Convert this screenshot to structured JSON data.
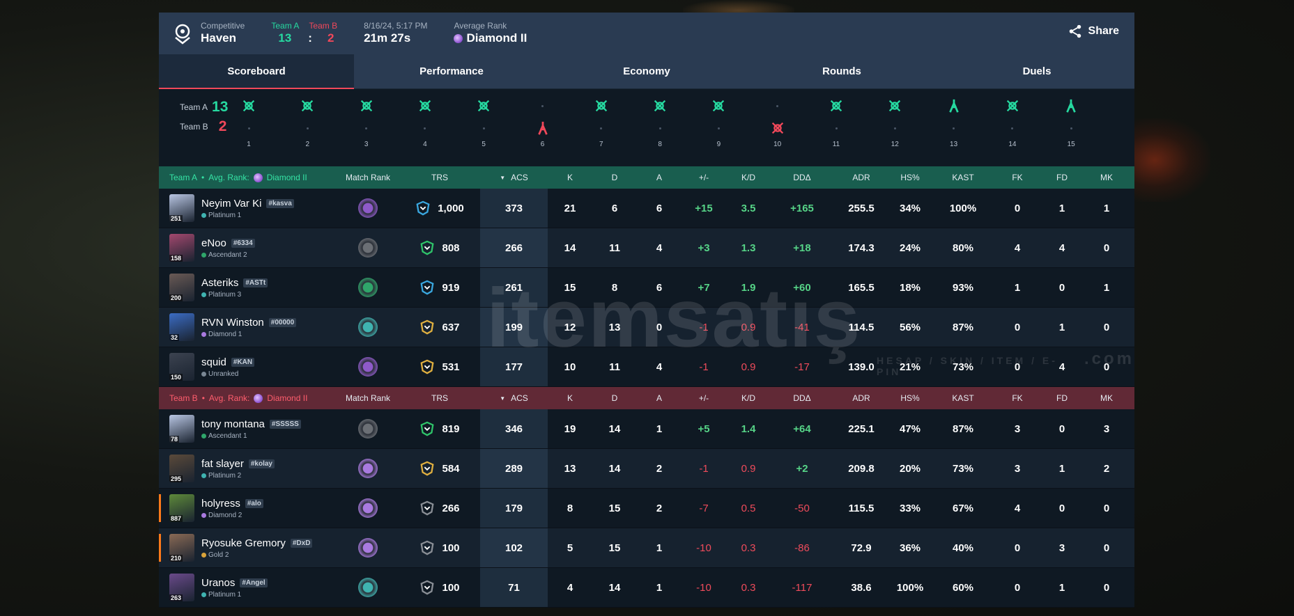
{
  "header": {
    "mode": "Competitive",
    "map": "Haven",
    "team_a_label": "Team A",
    "team_b_label": "Team B",
    "team_a_score": "13",
    "team_b_score": "2",
    "colon": ":",
    "datetime": "8/16/24, 5:17 PM",
    "duration": "21m 27s",
    "avg_rank_label": "Average Rank",
    "avg_rank": "Diamond II",
    "share_label": "Share"
  },
  "tabs": [
    {
      "label": "Scoreboard",
      "active": true
    },
    {
      "label": "Performance",
      "active": false
    },
    {
      "label": "Economy",
      "active": false
    },
    {
      "label": "Rounds",
      "active": false
    },
    {
      "label": "Duels",
      "active": false
    }
  ],
  "timeline": {
    "team_a_label": "Team A",
    "team_a_score": "13",
    "team_b_label": "Team B",
    "team_b_score": "2",
    "rounds": [
      {
        "num": "1",
        "winner": "A",
        "icon": "elimination"
      },
      {
        "num": "2",
        "winner": "A",
        "icon": "elimination"
      },
      {
        "num": "3",
        "winner": "A",
        "icon": "elimination"
      },
      {
        "num": "4",
        "winner": "A",
        "icon": "elimination"
      },
      {
        "num": "5",
        "winner": "A",
        "icon": "elimination"
      },
      {
        "num": "6",
        "winner": "B",
        "icon": "defuse"
      },
      {
        "num": "7",
        "winner": "A",
        "icon": "elimination"
      },
      {
        "num": "8",
        "winner": "A",
        "icon": "elimination"
      },
      {
        "num": "9",
        "winner": "A",
        "icon": "elimination"
      },
      {
        "num": "10",
        "winner": "B",
        "icon": "elimination"
      },
      {
        "num": "11",
        "winner": "A",
        "icon": "elimination"
      },
      {
        "num": "12",
        "winner": "A",
        "icon": "elimination"
      },
      {
        "num": "13",
        "winner": "A",
        "icon": "defuse"
      },
      {
        "num": "14",
        "winner": "A",
        "icon": "elimination"
      },
      {
        "num": "15",
        "winner": "A",
        "icon": "defuse"
      }
    ]
  },
  "columns": {
    "match_rank": "Match Rank",
    "trs": "TRS",
    "acs": "ACS",
    "k": "K",
    "d": "D",
    "a": "A",
    "pm": "+/-",
    "kd": "K/D",
    "dd": "DDΔ",
    "adr": "ADR",
    "hs": "HS%",
    "kast": "KAST",
    "fk": "FK",
    "fd": "FD",
    "mk": "MK"
  },
  "team_a": {
    "name": "Team A",
    "sep": "•",
    "avg_rank_label": "Avg. Rank:",
    "avg_rank": "Diamond II",
    "players": [
      {
        "name": "Neyim Var Ki",
        "tag": "#kasva",
        "level": "251",
        "rank": "Platinum 1",
        "rank_color": "#3fb3b0",
        "match_rank_color": "#8e5ac9",
        "trs_color": "#3aa8e0",
        "trs": "1,000",
        "acs": "373",
        "k": "21",
        "d": "6",
        "a": "6",
        "pm": "+15",
        "kd": "3.5",
        "dd": "+165",
        "adr": "255.5",
        "hs": "34%",
        "kast": "100%",
        "fk": "0",
        "fd": "1",
        "mk": "1",
        "positive": true,
        "avatar_color": "#b9c6e3",
        "orange": false
      },
      {
        "name": "eNoo",
        "tag": "#6334",
        "level": "158",
        "rank": "Ascendant 2",
        "rank_color": "#2fa56a",
        "match_rank_color": "#6b6f75",
        "trs_color": "#2fc46a",
        "trs": "808",
        "acs": "266",
        "k": "14",
        "d": "11",
        "a": "4",
        "pm": "+3",
        "kd": "1.3",
        "dd": "+18",
        "adr": "174.3",
        "hs": "24%",
        "kast": "80%",
        "fk": "4",
        "fd": "4",
        "mk": "0",
        "positive": true,
        "avatar_color": "#a3486e",
        "orange": false
      },
      {
        "name": "Asteriks",
        "tag": "#ASTt",
        "level": "200",
        "rank": "Platinum 3",
        "rank_color": "#3fb3b0",
        "match_rank_color": "#2fa56a",
        "trs_color": "#3aa8e0",
        "trs": "919",
        "acs": "261",
        "k": "15",
        "d": "8",
        "a": "6",
        "pm": "+7",
        "kd": "1.9",
        "dd": "+60",
        "adr": "165.5",
        "hs": "18%",
        "kast": "93%",
        "fk": "1",
        "fd": "0",
        "mk": "1",
        "positive": true,
        "avatar_color": "#6a5a55",
        "orange": false
      },
      {
        "name": "RVN Winston",
        "tag": "#00000",
        "level": "32",
        "rank": "Diamond 1",
        "rank_color": "#a97ae0",
        "match_rank_color": "#3fb3b0",
        "trs_color": "#e0b040",
        "trs": "637",
        "acs": "199",
        "k": "12",
        "d": "13",
        "a": "0",
        "pm": "-1",
        "kd": "0.9",
        "dd": "-41",
        "adr": "114.5",
        "hs": "56%",
        "kast": "87%",
        "fk": "0",
        "fd": "1",
        "mk": "0",
        "positive": false,
        "avatar_color": "#3b6cc4",
        "orange": false
      },
      {
        "name": "squid",
        "tag": "#KAN",
        "level": "150",
        "rank": "Unranked",
        "rank_color": "#7a8794",
        "match_rank_color": "#8e5ac9",
        "trs_color": "#e0b040",
        "trs": "531",
        "acs": "177",
        "k": "10",
        "d": "11",
        "a": "4",
        "pm": "-1",
        "kd": "0.9",
        "dd": "-17",
        "adr": "139.0",
        "hs": "21%",
        "kast": "73%",
        "fk": "0",
        "fd": "4",
        "mk": "0",
        "positive": false,
        "avatar_color": "#3c4350",
        "orange": false
      }
    ]
  },
  "team_b": {
    "name": "Team B",
    "sep": "•",
    "avg_rank_label": "Avg. Rank:",
    "avg_rank": "Diamond II",
    "players": [
      {
        "name": "tony montana",
        "tag": "#SSSSS",
        "level": "78",
        "rank": "Ascendant 1",
        "rank_color": "#2fa56a",
        "match_rank_color": "#6b6f75",
        "trs_color": "#2fc46a",
        "trs": "819",
        "acs": "346",
        "k": "19",
        "d": "14",
        "a": "1",
        "pm": "+5",
        "kd": "1.4",
        "dd": "+64",
        "adr": "225.1",
        "hs": "47%",
        "kast": "87%",
        "fk": "3",
        "fd": "0",
        "mk": "3",
        "positive": true,
        "avatar_color": "#b9c6e3",
        "orange": false
      },
      {
        "name": "fat slayer",
        "tag": "#kolay",
        "level": "295",
        "rank": "Platinum 2",
        "rank_color": "#3fb3b0",
        "match_rank_color": "#a97ae0",
        "trs_color": "#e0b040",
        "trs": "584",
        "acs": "289",
        "k": "13",
        "d": "14",
        "a": "2",
        "pm": "-1",
        "kd": "0.9",
        "dd": "+2",
        "adr": "209.8",
        "hs": "20%",
        "kast": "73%",
        "fk": "3",
        "fd": "1",
        "mk": "2",
        "positive": false,
        "dd_positive": true,
        "avatar_color": "#5b4a3a",
        "orange": false
      },
      {
        "name": "holyress",
        "tag": "#alo",
        "level": "887",
        "rank": "Diamond 2",
        "rank_color": "#a97ae0",
        "match_rank_color": "#a97ae0",
        "trs_color": "#8a8f96",
        "trs": "266",
        "acs": "179",
        "k": "8",
        "d": "15",
        "a": "2",
        "pm": "-7",
        "kd": "0.5",
        "dd": "-50",
        "adr": "115.5",
        "hs": "33%",
        "kast": "67%",
        "fk": "4",
        "fd": "0",
        "mk": "0",
        "positive": false,
        "avatar_color": "#5e8a3a",
        "orange": true
      },
      {
        "name": "Ryosuke Gremory",
        "tag": "#DxD",
        "level": "210",
        "rank": "Gold 2",
        "rank_color": "#d9a33a",
        "match_rank_color": "#a97ae0",
        "trs_color": "#8a8f96",
        "trs": "100",
        "acs": "102",
        "k": "5",
        "d": "15",
        "a": "1",
        "pm": "-10",
        "kd": "0.3",
        "dd": "-86",
        "adr": "72.9",
        "hs": "36%",
        "kast": "40%",
        "fk": "0",
        "fd": "3",
        "mk": "0",
        "positive": false,
        "avatar_color": "#8a6a55",
        "orange": true
      },
      {
        "name": "Uranos",
        "tag": "#Angel",
        "level": "263",
        "rank": "Platinum 1",
        "rank_color": "#3fb3b0",
        "match_rank_color": "#3fb3b0",
        "trs_color": "#8a8f96",
        "trs": "100",
        "acs": "71",
        "k": "4",
        "d": "14",
        "a": "1",
        "pm": "-10",
        "kd": "0.3",
        "dd": "-117",
        "adr": "38.6",
        "hs": "100%",
        "kast": "60%",
        "fk": "0",
        "fd": "1",
        "mk": "0",
        "positive": false,
        "avatar_color": "#6a4a8a",
        "orange": false
      }
    ]
  },
  "watermark": {
    "text": "itemsatış",
    "sub": "HESAP / SKIN / ITEM / E-PIN",
    "dom": ".com"
  },
  "colors": {
    "team_a": "#26d9a0",
    "team_b": "#f1485a",
    "header_bg": "#2a3b52",
    "panel_bg": "#0f1923"
  }
}
